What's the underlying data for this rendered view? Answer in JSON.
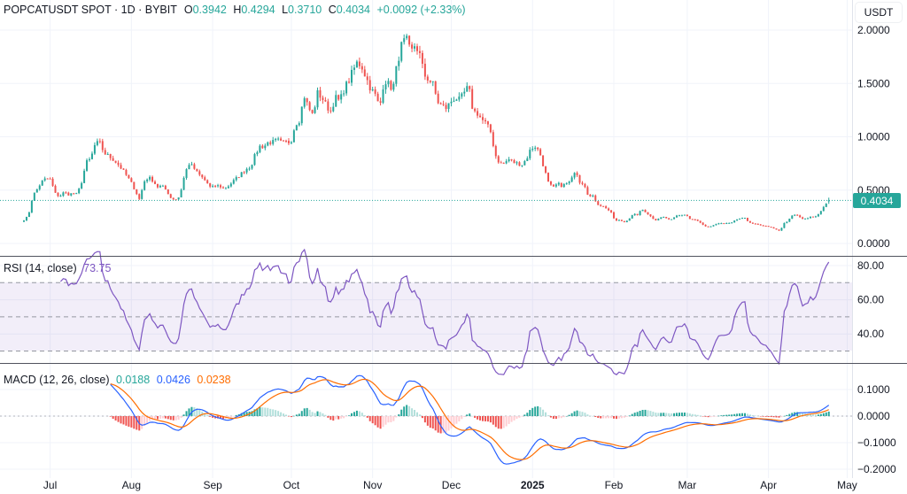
{
  "header": {
    "symbol": "POPCATUSDT SPOT · 1D · BYBIT",
    "o_label": "O",
    "o": "0.3942",
    "h_label": "H",
    "h": "0.4294",
    "l_label": "L",
    "l": "0.3710",
    "c_label": "C",
    "c": "0.4034",
    "change": "+0.0092 (+2.33%)"
  },
  "currency_button": "USDT",
  "last_price_label": "0.4034",
  "colors": {
    "up": "#26a69a",
    "down": "#ef5350",
    "rsi": "#7e57c2",
    "macd": "#2962ff",
    "signal": "#ff6d00"
  },
  "chart_data": [
    {
      "type": "candlestick",
      "title": "POPCATUSDT SPOT · 1D · BYBIT",
      "date_range": [
        "2024-06-21",
        "2025-04-24"
      ],
      "last_candle": {
        "open": 0.3942,
        "high": 0.4294,
        "low": 0.371,
        "close": 0.4034
      },
      "approx_close_samples": [
        0.22,
        0.26,
        0.45,
        0.51,
        0.58,
        0.61,
        0.6,
        0.47,
        0.44,
        0.48,
        0.46,
        0.47,
        0.46,
        0.58,
        0.76,
        0.79,
        0.93,
        0.95,
        0.85,
        0.82,
        0.79,
        0.75,
        0.7,
        0.64,
        0.58,
        0.5,
        0.41,
        0.58,
        0.62,
        0.59,
        0.53,
        0.54,
        0.5,
        0.43,
        0.41,
        0.44,
        0.62,
        0.75,
        0.72,
        0.66,
        0.62,
        0.58,
        0.52,
        0.54,
        0.54,
        0.51,
        0.54,
        0.58,
        0.62,
        0.66,
        0.7,
        0.72,
        0.83,
        0.91,
        0.91,
        0.95,
        0.95,
        0.97,
        0.94,
        0.95,
        0.95,
        1.12,
        1.16,
        1.39,
        1.27,
        1.2,
        1.41,
        1.37,
        1.29,
        1.24,
        1.37,
        1.33,
        1.45,
        1.52,
        1.62,
        1.7,
        1.66,
        1.55,
        1.45,
        1.39,
        1.27,
        1.54,
        1.49,
        1.45,
        1.7,
        1.87,
        1.91,
        1.78,
        1.87,
        1.77,
        1.58,
        1.54,
        1.49,
        1.33,
        1.29,
        1.27,
        1.33,
        1.37,
        1.34,
        1.41,
        1.47,
        1.24,
        1.22,
        1.16,
        1.12,
        1.04,
        0.83,
        0.75,
        0.75,
        0.79,
        0.76,
        0.75,
        0.74,
        0.79,
        0.89,
        0.91,
        0.85,
        0.7,
        0.56,
        0.52,
        0.56,
        0.54,
        0.56,
        0.58,
        0.7,
        0.58,
        0.56,
        0.44,
        0.44,
        0.37,
        0.35,
        0.33,
        0.29,
        0.21,
        0.22,
        0.2,
        0.23,
        0.27,
        0.27,
        0.32,
        0.29,
        0.25,
        0.22,
        0.24,
        0.25,
        0.22,
        0.24,
        0.27,
        0.27,
        0.27,
        0.22,
        0.22,
        0.2,
        0.16,
        0.15,
        0.17,
        0.19,
        0.19,
        0.19,
        0.19,
        0.22,
        0.23,
        0.24,
        0.2,
        0.18,
        0.18,
        0.17,
        0.16,
        0.15,
        0.13,
        0.12,
        0.19,
        0.22,
        0.27,
        0.26,
        0.23,
        0.23,
        0.25,
        0.25,
        0.29,
        0.36,
        0.39
      ],
      "y_ticks": [
        "2.0000",
        "1.5000",
        "1.0000",
        "0.5000",
        "0.0000"
      ],
      "y_tick_values": [
        2.0,
        1.5,
        1.0,
        0.5,
        0.0
      ],
      "ylim": [
        0,
        2.0
      ],
      "x_ticks": [
        {
          "label": "Jul",
          "date": "2024-07-01"
        },
        {
          "label": "Aug",
          "date": "2024-08-01"
        },
        {
          "label": "Sep",
          "date": "2024-09-01"
        },
        {
          "label": "Oct",
          "date": "2024-10-01"
        },
        {
          "label": "Nov",
          "date": "2024-11-01"
        },
        {
          "label": "Dec",
          "date": "2024-12-01"
        },
        {
          "label": "2025",
          "date": "2025-01-01",
          "bold": true
        },
        {
          "label": "Feb",
          "date": "2025-02-01"
        },
        {
          "label": "Mar",
          "date": "2025-03-01"
        },
        {
          "label": "Apr",
          "date": "2025-04-01"
        },
        {
          "label": "May",
          "date": "2025-05-01"
        }
      ]
    },
    {
      "type": "line",
      "title": "RSI (14, close)",
      "value": "73.75",
      "y_ticks": [
        "80.00",
        "60.00",
        "40.00"
      ],
      "y_tick_values": [
        80,
        60,
        40
      ],
      "bands": [
        70,
        50,
        30
      ]
    },
    {
      "type": "line",
      "title": "MACD (12, 26, close)",
      "values": {
        "histogram": "0.0188",
        "macd": "0.0426",
        "signal": "0.0238"
      },
      "y_ticks": [
        "0.1000",
        "0.0000",
        "−0.1000",
        "−0.2000"
      ],
      "y_tick_values": [
        0.1,
        0,
        -0.1,
        -0.2
      ]
    }
  ]
}
